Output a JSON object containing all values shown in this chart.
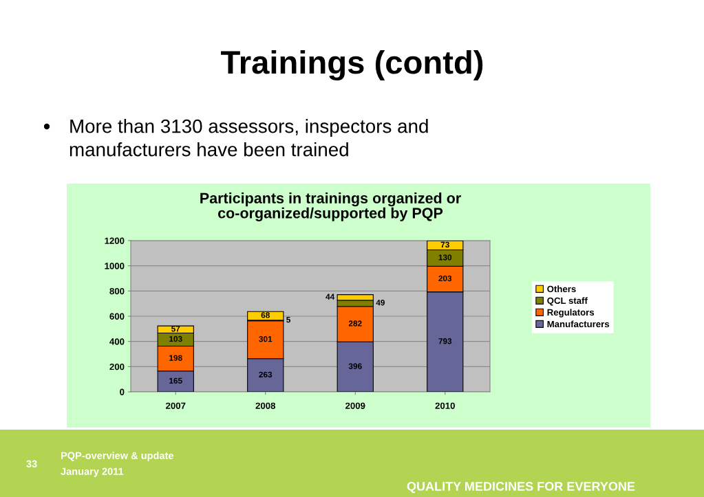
{
  "chart_data": {
    "type": "bar",
    "title": "Participants in trainings organized or\nco-organized/supported by PQP",
    "categories": [
      "2007",
      "2008",
      "2009",
      "2010"
    ],
    "series": [
      {
        "name": "Manufacturers",
        "color": "#666699",
        "values": [
          165,
          263,
          396,
          793
        ]
      },
      {
        "name": "Regulators",
        "color": "#ff6600",
        "values": [
          198,
          301,
          282,
          203
        ]
      },
      {
        "name": "QCL staff",
        "color": "#808000",
        "values": [
          103,
          5,
          49,
          130
        ]
      },
      {
        "name": "Others",
        "color": "#ffcc00",
        "values": [
          57,
          68,
          44,
          73
        ]
      }
    ],
    "stacked": true,
    "ylim": [
      0,
      1200
    ],
    "yticks": [
      0,
      200,
      400,
      600,
      800,
      1000,
      1200
    ],
    "grid": "y",
    "legend": "right",
    "data_labels": true,
    "annotations": [
      "Trainings (contd)",
      "More than 3130 assessors, inspectors and\nmanufacturers have been trained",
      "33",
      "PQP-overview & update",
      "January 2011",
      "QUALITY MEDICINES FOR EVERYONE"
    ]
  }
}
